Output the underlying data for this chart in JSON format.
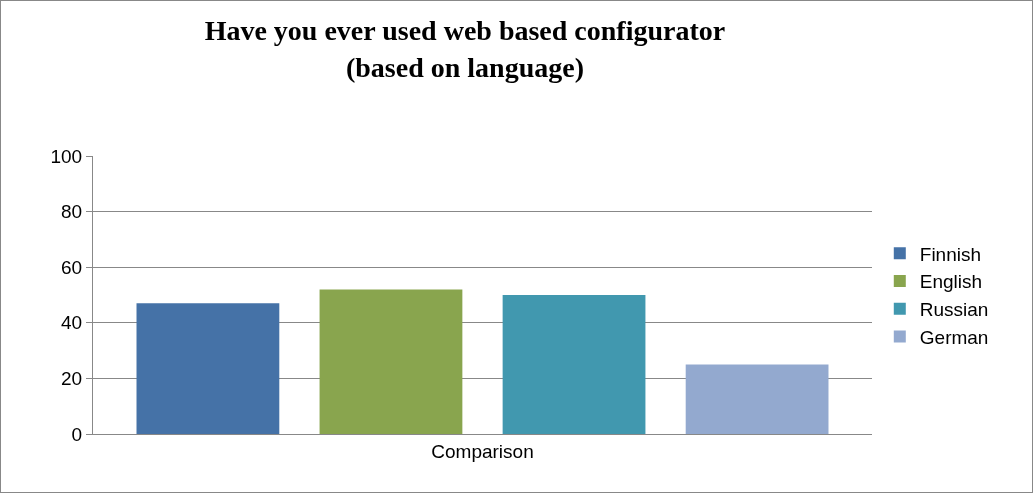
{
  "chart_data": {
    "type": "bar",
    "title": "Have you ever used web based configurator\n(based on language)",
    "categories": [
      "Comparison"
    ],
    "series": [
      {
        "name": "Finnish",
        "color": "#4572a7",
        "values": [
          47
        ]
      },
      {
        "name": "English",
        "color": "#89a54e",
        "values": [
          52
        ]
      },
      {
        "name": "Russian",
        "color": "#4198af",
        "values": [
          50
        ]
      },
      {
        "name": "German",
        "color": "#93a9cf",
        "values": [
          25
        ]
      }
    ],
    "ylim": [
      0,
      100
    ],
    "yticks": [
      0,
      20,
      40,
      60,
      80,
      100
    ],
    "grid": "y",
    "legend": "right"
  }
}
